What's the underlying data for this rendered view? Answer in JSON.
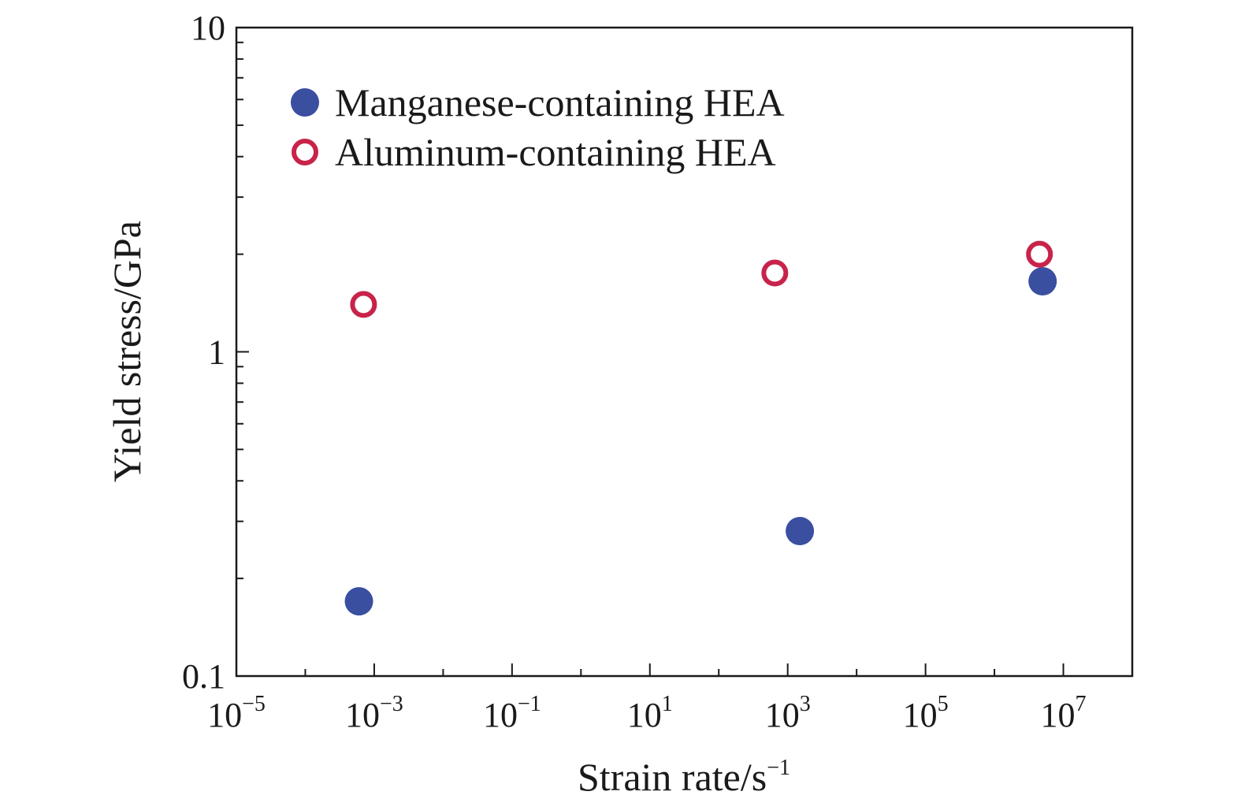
{
  "chart_data": {
    "type": "scatter",
    "xscale": "log",
    "yscale": "log",
    "xlim": [
      1e-05,
      100000000
    ],
    "ylim": [
      0.1,
      10
    ],
    "xlabel": "Strain rate/s",
    "xlabel_sup": "−1",
    "ylabel": "Yield stress/GPa",
    "x_ticks": [
      {
        "base": "10",
        "exp": "−5",
        "value": 1e-05
      },
      {
        "base": "10",
        "exp": "−3",
        "value": 0.001
      },
      {
        "base": "10",
        "exp": "−1",
        "value": 0.1
      },
      {
        "base": "10",
        "exp": "1",
        "value": 10
      },
      {
        "base": "10",
        "exp": "3",
        "value": 1000
      },
      {
        "base": "10",
        "exp": "5",
        "value": 100000
      },
      {
        "base": "10",
        "exp": "7",
        "value": 10000000
      }
    ],
    "y_ticks": [
      {
        "label": "0.1",
        "value": 0.1
      },
      {
        "label": "1",
        "value": 1
      },
      {
        "label": "10",
        "value": 10
      }
    ],
    "legend_position": "top-left",
    "grid": false,
    "series": [
      {
        "name": "Manganese-containing HEA",
        "marker": "filled-circle",
        "color": "#3a4fa0",
        "points": [
          {
            "x": 0.0006,
            "y": 0.17
          },
          {
            "x": 1500,
            "y": 0.28
          },
          {
            "x": 5000000,
            "y": 1.65
          }
        ]
      },
      {
        "name": "Aluminum-containing HEA",
        "marker": "open-circle",
        "color": "#c8234a",
        "points": [
          {
            "x": 0.0007,
            "y": 1.4
          },
          {
            "x": 650,
            "y": 1.75
          },
          {
            "x": 4500000,
            "y": 2.0
          }
        ]
      }
    ]
  }
}
